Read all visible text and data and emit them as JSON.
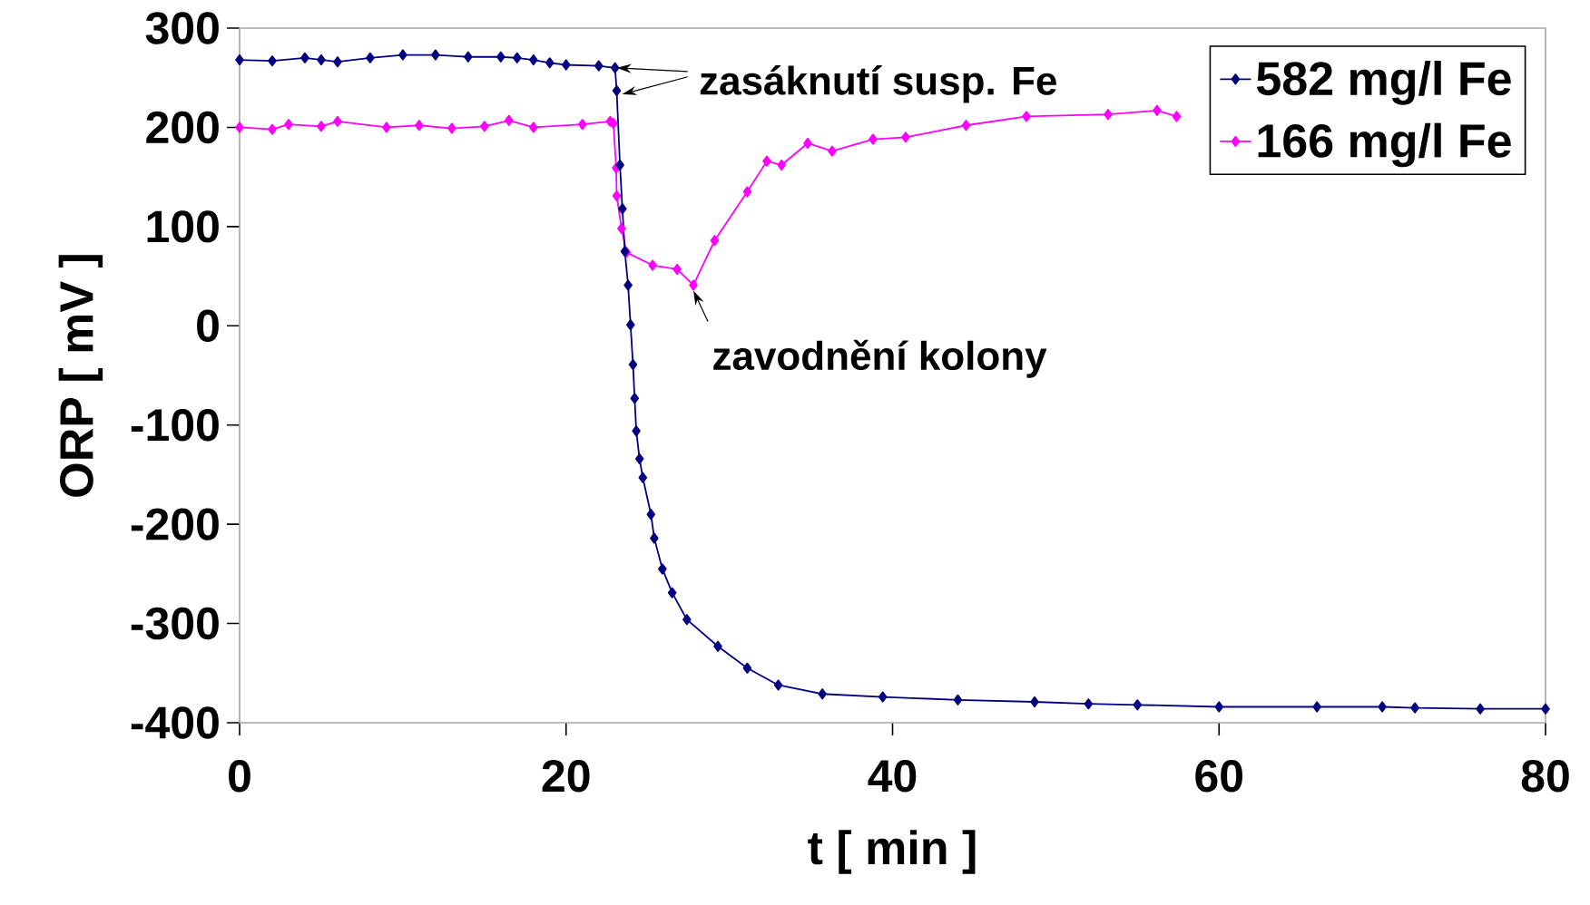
{
  "chart_data": {
    "type": "line",
    "xlabel": "t [ min ]",
    "ylabel": "ORP [ mV ]",
    "xlim": [
      0,
      80
    ],
    "xticks": [
      0,
      20,
      40,
      60,
      80
    ],
    "ylim": [
      -400,
      300
    ],
    "yticks": [
      -400,
      -300,
      -200,
      -100,
      0,
      100,
      200,
      300
    ],
    "grid": false,
    "legend": "top right",
    "marker": "diamond",
    "line_style": "solid",
    "annotations": [
      {
        "text": "zasáknutí susp. Fe",
        "x": 23,
        "y": 260
      },
      {
        "text": "zavodnění kolony",
        "x": 27.8,
        "y": 41
      }
    ],
    "series": [
      {
        "name": "582 mg/l Fe",
        "color": "#000080",
        "x": [
          0,
          2,
          4,
          5,
          6,
          8,
          10,
          12,
          14,
          16,
          17,
          18,
          19,
          20,
          22,
          23,
          23.1,
          23.3,
          23.45,
          23.6,
          23.8,
          23.95,
          24.1,
          24.2,
          24.3,
          24.5,
          24.7,
          25.2,
          25.4,
          25.9,
          26.5,
          27.4,
          29.3,
          31.1,
          33,
          35.7,
          39.4,
          44,
          48.7,
          52,
          55,
          60,
          66,
          70,
          72,
          76,
          80
        ],
        "values": [
          268,
          267,
          270,
          268,
          266,
          270,
          273,
          273,
          271,
          271,
          270,
          268,
          265,
          263,
          262,
          260,
          237,
          162,
          118,
          75,
          41,
          1,
          -39,
          -73,
          -106,
          -134,
          -153,
          -190,
          -214,
          -245,
          -269,
          -296,
          -323,
          -345,
          -362,
          -371,
          -374,
          -377,
          -379,
          -381,
          -382,
          -384,
          -384,
          -384,
          -385,
          -386,
          -386
        ]
      },
      {
        "name": "166 mg/l Fe",
        "color": "#ff00ff",
        "x": [
          0,
          2,
          3,
          5,
          6,
          9,
          11,
          13,
          15,
          16.5,
          18,
          21,
          22.7,
          22.9,
          23.07,
          23.1,
          23.4,
          23.7,
          25.3,
          26.8,
          27.8,
          29.1,
          31.1,
          32.3,
          33.2,
          34.8,
          36.3,
          38.8,
          40.8,
          44.5,
          48.2,
          53.2,
          56.2,
          57.4
        ],
        "values": [
          200,
          198,
          203,
          201,
          206,
          200,
          202,
          199,
          201,
          207,
          200,
          203,
          206,
          204,
          159,
          131,
          98,
          74,
          61,
          57,
          41,
          86,
          135,
          166,
          162,
          184,
          176,
          188,
          190,
          202,
          211,
          213,
          217,
          211
        ]
      }
    ]
  }
}
